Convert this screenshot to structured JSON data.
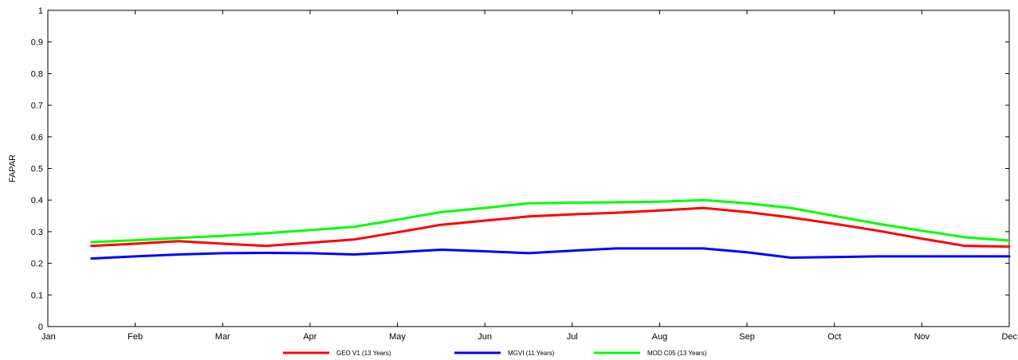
{
  "chart_data": {
    "type": "line",
    "title": "",
    "xlabel": "",
    "ylabel": "FAPAR",
    "ylim": [
      0,
      1
    ],
    "yticks": [
      0,
      0.1,
      0.2,
      0.3,
      0.4,
      0.5,
      0.6,
      0.7,
      0.8,
      0.9,
      1
    ],
    "ytick_labels": [
      "0",
      "0.1",
      "0.2",
      "0.3",
      "0.4",
      "0.5",
      "0.6",
      "0.7",
      "0.8",
      "0.9",
      "1"
    ],
    "xlim": [
      0,
      11
    ],
    "xticks": [
      0,
      1,
      2,
      3,
      4,
      5,
      6,
      7,
      8,
      9,
      10,
      11
    ],
    "xtick_labels": [
      "Jan",
      "Feb",
      "Mar",
      "Apr",
      "May",
      "Jun",
      "Jul",
      "Aug",
      "Sep",
      "Oct",
      "Nov",
      "Dec"
    ],
    "grid": false,
    "legend": "bottom",
    "series": [
      {
        "name": "GEO V1 (13 Years)",
        "color": "#ff0000",
        "x": [
          0.5,
          1.0,
          1.5,
          2.0,
          2.5,
          3.0,
          3.5,
          4.0,
          4.5,
          5.0,
          5.5,
          6.0,
          6.5,
          7.0,
          7.5,
          8.0,
          8.5,
          9.0,
          9.5,
          10.0,
          10.5,
          11.0
        ],
        "values": [
          0.255,
          0.262,
          0.27,
          0.262,
          0.255,
          0.265,
          0.275,
          0.298,
          0.322,
          0.335,
          0.348,
          0.355,
          0.36,
          0.367,
          0.375,
          0.362,
          0.345,
          0.325,
          0.303,
          0.278,
          0.255,
          0.253
        ]
      },
      {
        "name": "MGVI (11 Years)",
        "color": "#0000ff",
        "x": [
          0.5,
          1.0,
          1.5,
          2.0,
          2.5,
          3.0,
          3.5,
          4.0,
          4.5,
          5.0,
          5.5,
          6.0,
          6.5,
          7.0,
          7.5,
          8.0,
          8.5,
          9.0,
          9.5,
          10.0,
          10.5,
          11.0
        ],
        "values": [
          0.215,
          0.222,
          0.228,
          0.232,
          0.233,
          0.232,
          0.228,
          0.235,
          0.243,
          0.238,
          0.232,
          0.24,
          0.247,
          0.247,
          0.247,
          0.235,
          0.218,
          0.22,
          0.222,
          0.222,
          0.222,
          0.222
        ]
      },
      {
        "name": "MOD C05 (13 Years)",
        "color": "#00ff00",
        "x": [
          0.5,
          1.0,
          1.5,
          2.0,
          2.5,
          3.0,
          3.5,
          4.0,
          4.5,
          5.0,
          5.5,
          6.0,
          6.5,
          7.0,
          7.5,
          8.0,
          8.5,
          9.0,
          9.5,
          10.0,
          10.5,
          11.0
        ],
        "values": [
          0.267,
          0.273,
          0.28,
          0.287,
          0.295,
          0.305,
          0.315,
          0.338,
          0.362,
          0.375,
          0.39,
          0.392,
          0.393,
          0.395,
          0.4,
          0.39,
          0.375,
          0.35,
          0.325,
          0.303,
          0.282,
          0.272
        ]
      }
    ]
  }
}
